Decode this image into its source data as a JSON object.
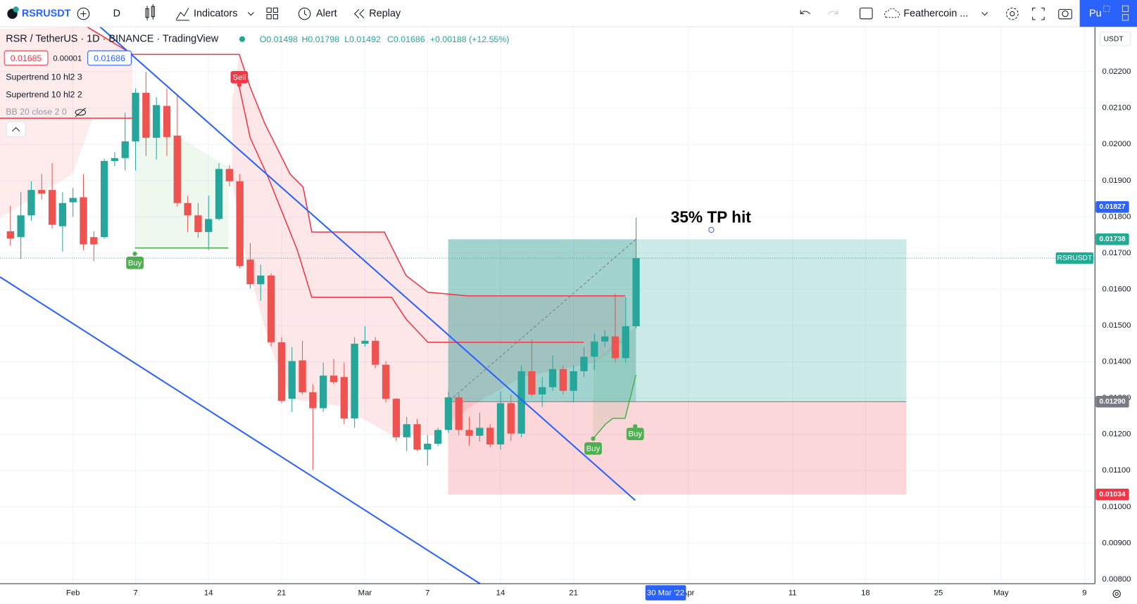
{
  "toolbar": {
    "symbol": "RSRUSDT",
    "interval": "D",
    "indicators": "Indicators",
    "alert": "Alert",
    "replay": "Replay",
    "layout": "Feathercoin ...",
    "publish": "Pu",
    "currency": "USDT"
  },
  "legend": {
    "title": "RSR / TetherUS · 1D · BINANCE · TradingView",
    "ohlc": [
      "O0.01498",
      "H0.01798",
      "L0.01492",
      "C0.01686",
      "+0.00188 (+12.55%)"
    ],
    "quotes": [
      "0.01685",
      "0.00001",
      "0.01686"
    ],
    "indicators": [
      "Supertrend 10 hl2 3",
      "Supertrend 10 hl2 2",
      "BB 20 close 2 0"
    ]
  },
  "annotation": "35% TP hit",
  "signals": [
    "Sell",
    "Buy",
    "Buy",
    "Buy"
  ],
  "crosshair_date": "30 Mar '22",
  "chart_data": {
    "type": "candlestick",
    "x": [
      "2022-01-26",
      "2022-01-27",
      "2022-01-28",
      "2022-01-29",
      "2022-01-30",
      "2022-01-31",
      "2022-02-01",
      "2022-02-02",
      "2022-02-03",
      "2022-02-04",
      "2022-02-05",
      "2022-02-06",
      "2022-02-07",
      "2022-02-08",
      "2022-02-09",
      "2022-02-10",
      "2022-02-11",
      "2022-02-12",
      "2022-02-13",
      "2022-02-14",
      "2022-02-15",
      "2022-02-16",
      "2022-02-17",
      "2022-02-18",
      "2022-02-19",
      "2022-02-20",
      "2022-02-21",
      "2022-02-22",
      "2022-02-23",
      "2022-02-24",
      "2022-02-25",
      "2022-02-26",
      "2022-02-27",
      "2022-02-28",
      "2022-03-01",
      "2022-03-02",
      "2022-03-03",
      "2022-03-04",
      "2022-03-05",
      "2022-03-06",
      "2022-03-07",
      "2022-03-08",
      "2022-03-09",
      "2022-03-10",
      "2022-03-11",
      "2022-03-12",
      "2022-03-13",
      "2022-03-14",
      "2022-03-15",
      "2022-03-16",
      "2022-03-17",
      "2022-03-18",
      "2022-03-19",
      "2022-03-20",
      "2022-03-21",
      "2022-03-22",
      "2022-03-23",
      "2022-03-24",
      "2022-03-25",
      "2022-03-26",
      "2022-03-27"
    ],
    "open": [
      0.0176,
      0.01744,
      0.01804,
      0.01874,
      0.01874,
      0.01774,
      0.0184,
      0.01854,
      0.01744,
      0.01744,
      0.01954,
      0.01962,
      0.02008,
      0.02142,
      0.02018,
      0.02106,
      0.02024,
      0.01838,
      0.01804,
      0.01758,
      0.01794,
      0.01932,
      0.01898,
      0.01682,
      0.01614,
      0.01638,
      0.01454,
      0.01298,
      0.01404,
      0.01316,
      0.01272,
      0.01362,
      0.01358,
      0.01244,
      0.0145,
      0.01458,
      0.01392,
      0.01298,
      0.01192,
      0.01228,
      0.01158,
      0.01174,
      0.01212,
      0.01302,
      0.01212,
      0.01196,
      0.01218,
      0.01172,
      0.01286,
      0.01202,
      0.01374,
      0.0131,
      0.0133,
      0.0138,
      0.0132,
      0.01374,
      0.01414,
      0.01456,
      0.0147,
      0.0141,
      0.01498
    ],
    "high": [
      0.0183,
      0.01868,
      0.01898,
      0.01918,
      0.01948,
      0.01868,
      0.0188,
      0.01918,
      0.0176,
      0.0196,
      0.01978,
      0.02088,
      0.02154,
      0.022,
      0.0213,
      0.02154,
      0.02138,
      0.01858,
      0.01838,
      0.01858,
      0.01948,
      0.01942,
      0.01918,
      0.01728,
      0.01668,
      0.01644,
      0.01468,
      0.0144,
      0.01458,
      0.01338,
      0.01398,
      0.01408,
      0.01398,
      0.01468,
      0.01498,
      0.01468,
      0.01402,
      0.013,
      0.01248,
      0.01242,
      0.01198,
      0.01218,
      0.01318,
      0.0131,
      0.01248,
      0.0126,
      0.01228,
      0.01318,
      0.0131,
      0.0139,
      0.01462,
      0.01358,
      0.01418,
      0.0139,
      0.0139,
      0.0144,
      0.01478,
      0.01488,
      0.01588,
      0.01578,
      0.01798
    ],
    "low": [
      0.0172,
      0.01684,
      0.0179,
      0.01848,
      0.01768,
      0.01704,
      0.018,
      0.01708,
      0.01678,
      0.0174,
      0.0194,
      0.01928,
      0.01928,
      0.01968,
      0.01958,
      0.01968,
      0.01828,
      0.01758,
      0.01742,
      0.01708,
      0.0179,
      0.01884,
      0.01658,
      0.01602,
      0.01568,
      0.01442,
      0.01286,
      0.01262,
      0.0131,
      0.01102,
      0.01262,
      0.01338,
      0.01228,
      0.01218,
      0.01442,
      0.01382,
      0.01288,
      0.01182,
      0.01154,
      0.01154,
      0.01114,
      0.01168,
      0.01204,
      0.01198,
      0.01168,
      0.0118,
      0.01164,
      0.01158,
      0.01182,
      0.01192,
      0.01304,
      0.01276,
      0.0132,
      0.0131,
      0.01288,
      0.01358,
      0.01378,
      0.0144,
      0.01398,
      0.01398,
      0.01492
    ],
    "close": [
      0.0174,
      0.01804,
      0.01874,
      0.01864,
      0.01778,
      0.01838,
      0.01852,
      0.01724,
      0.01724,
      0.01954,
      0.01962,
      0.02008,
      0.02142,
      0.02018,
      0.02108,
      0.0202,
      0.01838,
      0.01804,
      0.01758,
      0.01794,
      0.01932,
      0.01898,
      0.01664,
      0.01614,
      0.01638,
      0.01454,
      0.01292,
      0.01402,
      0.01316,
      0.01272,
      0.01362,
      0.01344,
      0.01244,
      0.0145,
      0.01458,
      0.01392,
      0.01298,
      0.01192,
      0.01228,
      0.01158,
      0.01174,
      0.01212,
      0.01302,
      0.01212,
      0.01196,
      0.01218,
      0.01172,
      0.01286,
      0.01202,
      0.01374,
      0.0131,
      0.0133,
      0.0138,
      0.0132,
      0.01374,
      0.01414,
      0.01456,
      0.0147,
      0.0141,
      0.01498,
      0.01686
    ],
    "up_color": "#26a69a",
    "down_color": "#ef5350",
    "xlim": [
      "2022-01-25",
      "2022-05-10"
    ],
    "xticks": [
      {
        "value": "2022-02-01",
        "label": "Feb"
      },
      {
        "value": "2022-02-07",
        "label": "7"
      },
      {
        "value": "2022-02-14",
        "label": "14"
      },
      {
        "value": "2022-02-21",
        "label": "21"
      },
      {
        "value": "2022-03-01",
        "label": "Mar"
      },
      {
        "value": "2022-03-07",
        "label": "7"
      },
      {
        "value": "2022-03-14",
        "label": "14"
      },
      {
        "value": "2022-03-21",
        "label": "21"
      },
      {
        "value": "2022-04-01",
        "label": "Apr"
      },
      {
        "value": "2022-04-11",
        "label": "11"
      },
      {
        "value": "2022-04-18",
        "label": "18"
      },
      {
        "value": "2022-04-25",
        "label": "25"
      },
      {
        "value": "2022-05-01",
        "label": "May"
      },
      {
        "value": "2022-05-09",
        "label": "9"
      }
    ],
    "ylim": [
      0.00788,
      0.02324
    ],
    "yticks": [
      {
        "value": 0.008,
        "label": "0.00800"
      },
      {
        "value": 0.009,
        "label": "0.00900"
      },
      {
        "value": 0.01,
        "label": "0.01000"
      },
      {
        "value": 0.011,
        "label": "0.01100"
      },
      {
        "value": 0.012,
        "label": "0.01200"
      },
      {
        "value": 0.013,
        "label": "0.01300"
      },
      {
        "value": 0.014,
        "label": "0.01400"
      },
      {
        "value": 0.015,
        "label": "0.01500"
      },
      {
        "value": 0.016,
        "label": "0.01600"
      },
      {
        "value": 0.017,
        "label": "0.01700"
      },
      {
        "value": 0.018,
        "label": "0.01800"
      },
      {
        "value": 0.019,
        "label": "0.01900"
      },
      {
        "value": 0.02,
        "label": "0.02000"
      },
      {
        "value": 0.021,
        "label": "0.02100"
      },
      {
        "value": 0.022,
        "label": "0.02200"
      }
    ],
    "grid": true,
    "position": {
      "target": {
        "value": 0.01738,
        "label": "0.01738"
      },
      "entry": {
        "value": 0.0129,
        "label": "0.01290"
      },
      "stop": {
        "value": 0.01034,
        "label": "0.01034"
      }
    },
    "crosshair_price": {
      "value": 0.01827,
      "label": "0.01827"
    },
    "last_price": {
      "value": 0.01686,
      "label": "RSRUSDT"
    }
  }
}
